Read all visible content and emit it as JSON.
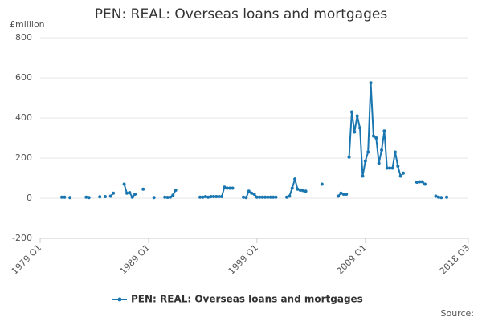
{
  "chart_data": {
    "type": "line",
    "title": "PEN: REAL: Overseas loans and mortgages",
    "y_label": "£million",
    "source": "Source:",
    "x": [
      1981,
      null,
      1981.25,
      null,
      1981.75,
      null,
      1983.25,
      1983.5,
      null,
      1984.5,
      null,
      1985,
      null,
      1985.5,
      1985.75,
      null,
      1986.75,
      1987,
      1987.25,
      1987.5,
      1987.75,
      null,
      1988.5,
      null,
      1989.5,
      null,
      1990.5,
      1990.75,
      1991,
      1991.25,
      1991.5,
      null,
      1993.75,
      1994,
      1994.25,
      1994.5,
      1994.75,
      1995,
      1995.25,
      1995.5,
      1995.75,
      1996,
      1996.25,
      1996.5,
      1996.75,
      null,
      1997.75,
      1998,
      1998.25,
      1998.5,
      1998.75,
      1999,
      1999.25,
      1999.5,
      1999.75,
      2000,
      2000.25,
      2000.5,
      2000.75,
      null,
      2001.75,
      2002,
      2002.25,
      2002.5,
      2002.75,
      2003,
      2003.25,
      2003.5,
      null,
      2005,
      null,
      2006.5,
      2006.75,
      2007,
      2007.25,
      null,
      2007.5,
      2007.75,
      2008,
      2008.25,
      2008.5,
      2008.75,
      2009,
      2009.25,
      2009.5,
      2009.75,
      2010,
      2010.25,
      2010.5,
      2010.75,
      2011,
      2011.25,
      2011.5,
      2011.75,
      2012,
      2012.25,
      2012.5,
      null,
      2013.75,
      2014,
      2014.25,
      2014.5,
      null,
      2015.5,
      2015.75,
      2016,
      null,
      2016.5
    ],
    "series": [
      {
        "name": "PEN: REAL: Overseas loans and mortgages",
        "color": "#1a76b0",
        "values": [
          5,
          null,
          5,
          null,
          3,
          null,
          5,
          3,
          null,
          7,
          null,
          8,
          null,
          10,
          25,
          null,
          70,
          25,
          28,
          5,
          20,
          null,
          45,
          null,
          3,
          null,
          5,
          4,
          5,
          15,
          40,
          null,
          5,
          5,
          8,
          5,
          8,
          8,
          8,
          8,
          8,
          55,
          50,
          50,
          50,
          null,
          5,
          3,
          35,
          25,
          20,
          5,
          5,
          5,
          5,
          5,
          5,
          5,
          5,
          null,
          5,
          10,
          50,
          95,
          45,
          40,
          38,
          35,
          null,
          70,
          null,
          10,
          25,
          20,
          20,
          null,
          205,
          430,
          330,
          410,
          350,
          110,
          185,
          230,
          575,
          310,
          300,
          175,
          240,
          335,
          150,
          150,
          150,
          230,
          160,
          110,
          125,
          null,
          80,
          82,
          82,
          70,
          null,
          10,
          5,
          3,
          null,
          5
        ]
      }
    ],
    "xlim": [
      1979,
      2018.5
    ],
    "xticks": [
      {
        "value": 1979,
        "label": "1979 Q1"
      },
      {
        "value": 1989,
        "label": "1989 Q1"
      },
      {
        "value": 1999,
        "label": "1999 Q1"
      },
      {
        "value": 2009,
        "label": "2009 Q1"
      },
      {
        "value": 2018.5,
        "label": "2018 Q3"
      }
    ],
    "ylim": [
      -200,
      800
    ],
    "yticks": [
      -200,
      0,
      200,
      400,
      600,
      800
    ],
    "grid": true,
    "legend": "bottom"
  }
}
